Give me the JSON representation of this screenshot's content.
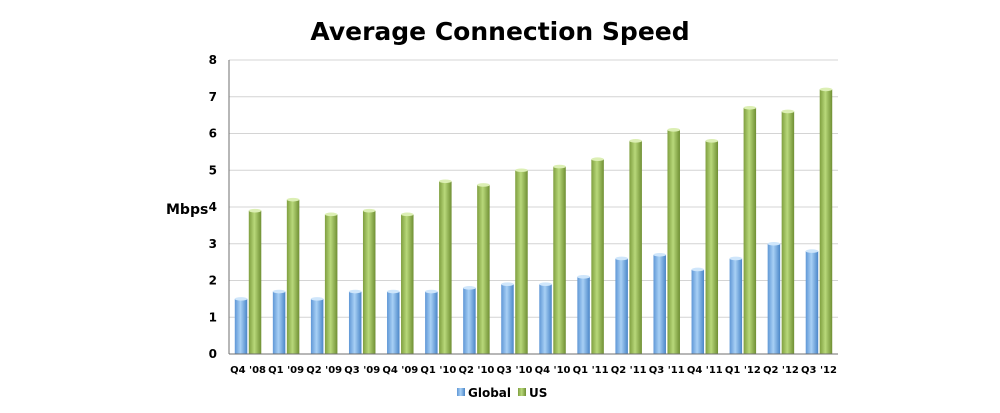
{
  "chart_data": {
    "type": "bar",
    "title": "Average Connection Speed",
    "xlabel": "",
    "ylabel": "Mbps",
    "ylim": [
      0,
      8
    ],
    "yticks": [
      "0",
      "1",
      "2",
      "3",
      "4",
      "5",
      "6",
      "7",
      "8"
    ],
    "grid": true,
    "legend_position": "bottom",
    "categories": [
      "Q4 '08",
      "Q1 '09",
      "Q2 '09",
      "Q3 '09",
      "Q4 '09",
      "Q1 '10",
      "Q2 '10",
      "Q3 '10",
      "Q4 '10",
      "Q1 '11",
      "Q2 '11",
      "Q3 '11",
      "Q4 '11",
      "Q1 '12",
      "Q2 '12",
      "Q3 '12"
    ],
    "series": [
      {
        "name": "Global",
        "color": "#7fb3ea",
        "values": [
          1.5,
          1.7,
          1.5,
          1.7,
          1.7,
          1.7,
          1.8,
          1.9,
          1.9,
          2.1,
          2.6,
          2.7,
          2.3,
          2.6,
          3.0,
          2.8
        ]
      },
      {
        "name": "US",
        "color": "#99bb55",
        "values": [
          3.9,
          4.2,
          3.8,
          3.9,
          3.8,
          4.7,
          4.6,
          5.0,
          5.1,
          5.3,
          5.8,
          6.1,
          5.8,
          6.7,
          6.6,
          7.2
        ]
      }
    ]
  }
}
